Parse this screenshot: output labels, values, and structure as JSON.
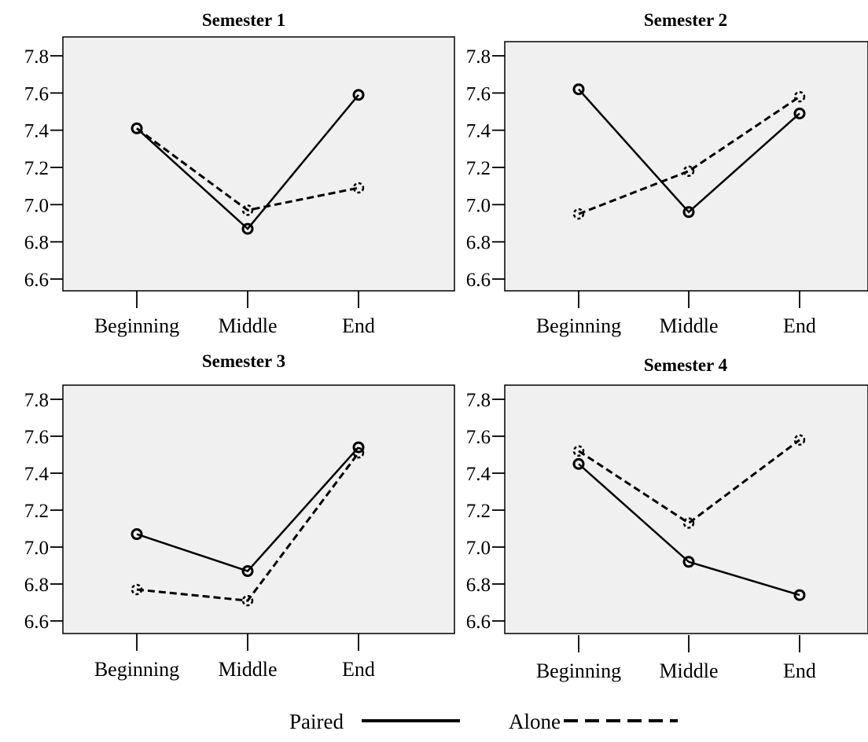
{
  "chart_data": [
    {
      "type": "line",
      "title": "Semester 1",
      "categories": [
        "Beginning",
        "Middle",
        "End"
      ],
      "ylim": [
        6.55,
        7.85
      ],
      "yticks": [
        "7.8",
        "7.6",
        "7.4",
        "7.2",
        "7.0",
        "6.8",
        "6.6"
      ],
      "series": [
        {
          "name": "Paired",
          "values": [
            7.41,
            6.87,
            7.59
          ]
        },
        {
          "name": "Alone",
          "values": [
            7.41,
            6.97,
            7.09
          ]
        }
      ]
    },
    {
      "type": "line",
      "title": "Semester 2",
      "categories": [
        "Beginning",
        "Middle",
        "End"
      ],
      "ylim": [
        6.55,
        7.85
      ],
      "yticks": [
        "7.8",
        "7.6",
        "7.4",
        "7.2",
        "7.0",
        "6.8",
        "6.6"
      ],
      "series": [
        {
          "name": "Paired",
          "values": [
            7.62,
            6.96,
            7.49
          ]
        },
        {
          "name": "Alone",
          "values": [
            6.95,
            7.18,
            7.58
          ]
        }
      ]
    },
    {
      "type": "line",
      "title": "Semester 3",
      "categories": [
        "Beginning",
        "Middle",
        "End"
      ],
      "ylim": [
        6.55,
        7.85
      ],
      "yticks": [
        "7.8",
        "7.6",
        "7.4",
        "7.2",
        "7.0",
        "6.8",
        "6.6"
      ],
      "series": [
        {
          "name": "Paired",
          "values": [
            7.07,
            6.87,
            7.54
          ]
        },
        {
          "name": "Alone",
          "values": [
            6.77,
            6.71,
            7.51
          ]
        }
      ]
    },
    {
      "type": "line",
      "title": "Semester 4",
      "categories": [
        "Beginning",
        "Middle",
        "End"
      ],
      "ylim": [
        6.55,
        7.85
      ],
      "yticks": [
        "7.8",
        "7.6",
        "7.4",
        "7.2",
        "7.0",
        "6.8",
        "6.6"
      ],
      "series": [
        {
          "name": "Paired",
          "values": [
            7.45,
            6.92,
            6.74
          ]
        },
        {
          "name": "Alone",
          "values": [
            7.52,
            7.13,
            7.58
          ]
        }
      ]
    }
  ],
  "legend": {
    "placement": "bottom-center",
    "items": [
      {
        "label": "Paired",
        "style": "solid"
      },
      {
        "label": "Alone",
        "style": "dashed"
      }
    ]
  },
  "colors": {
    "plot_background": "#f0f0f0",
    "line": "#000000",
    "axis": "#000000"
  }
}
